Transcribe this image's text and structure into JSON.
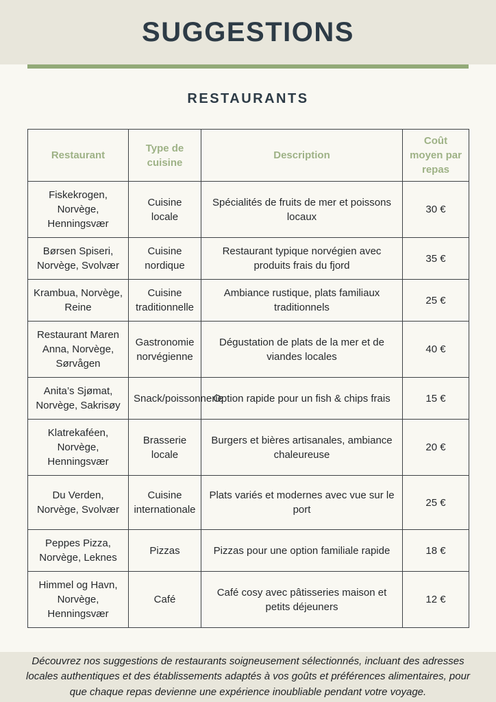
{
  "page": {
    "title": "SUGGESTIONS",
    "subtitle": "RESTAURANTS"
  },
  "colors": {
    "band_beige": "#e8e6db",
    "main_background": "#f9f8f2",
    "accent_rule_green": "#92aa78",
    "header_text_green": "#9eb286",
    "title_dark": "#2d3b46",
    "table_border": "#3d4145"
  },
  "table": {
    "columns": [
      "Restaurant",
      "Type de cuisine",
      "Description",
      "Coût moyen par repas"
    ],
    "rows": [
      {
        "restaurant": "Fiskekrogen, Norvège, Henningsvær",
        "cuisine": "Cuisine locale",
        "description": "Spécialités de fruits de mer et poissons locaux",
        "cost": "30 €"
      },
      {
        "restaurant": "Børsen Spiseri, Norvège, Svolvær",
        "cuisine": "Cuisine nordique",
        "description": "Restaurant typique norvégien avec produits frais du fjord",
        "cost": "35 €"
      },
      {
        "restaurant": "Krambua, Norvège, Reine",
        "cuisine": "Cuisine traditionnelle",
        "description": "Ambiance rustique, plats familiaux traditionnels",
        "cost": "25 €"
      },
      {
        "restaurant": "Restaurant Maren Anna, Norvège, Sørvågen",
        "cuisine": "Gastronomie norvégienne",
        "description": "Dégustation de plats de la mer et de viandes locales",
        "cost": "40 €"
      },
      {
        "restaurant": "Anita’s Sjømat, Norvège, Sakrisøy",
        "cuisine": "Snack/poissonnerie",
        "description": "Option rapide pour un fish & chips frais",
        "cost": "15 €"
      },
      {
        "restaurant": "Klatrekaféen, Norvège, Henningsvær",
        "cuisine": "Brasserie locale",
        "description": "Burgers et bières artisanales, ambiance chaleureuse",
        "cost": "20 €"
      },
      {
        "restaurant": "Du Verden, Norvège, Svolvær",
        "cuisine": "Cuisine internationale",
        "description": "Plats variés et modernes avec vue sur le port",
        "cost": "25 €"
      },
      {
        "restaurant": "Peppes Pizza, Norvège, Leknes",
        "cuisine": "Pizzas",
        "description": "Pizzas pour une option familiale rapide",
        "cost": "18 €"
      },
      {
        "restaurant": "Himmel og Havn, Norvège, Henningsvær",
        "cuisine": "Café",
        "description": "Café cosy avec pâtisseries maison et petits déjeuners",
        "cost": "12 €"
      }
    ]
  },
  "footer": {
    "text": "Découvrez nos suggestions de restaurants soigneusement sélectionnés, incluant des adresses locales authentiques et des établissements adaptés à vos goûts et préférences alimentaires, pour que chaque repas devienne une expérience inoubliable pendant votre voyage."
  }
}
